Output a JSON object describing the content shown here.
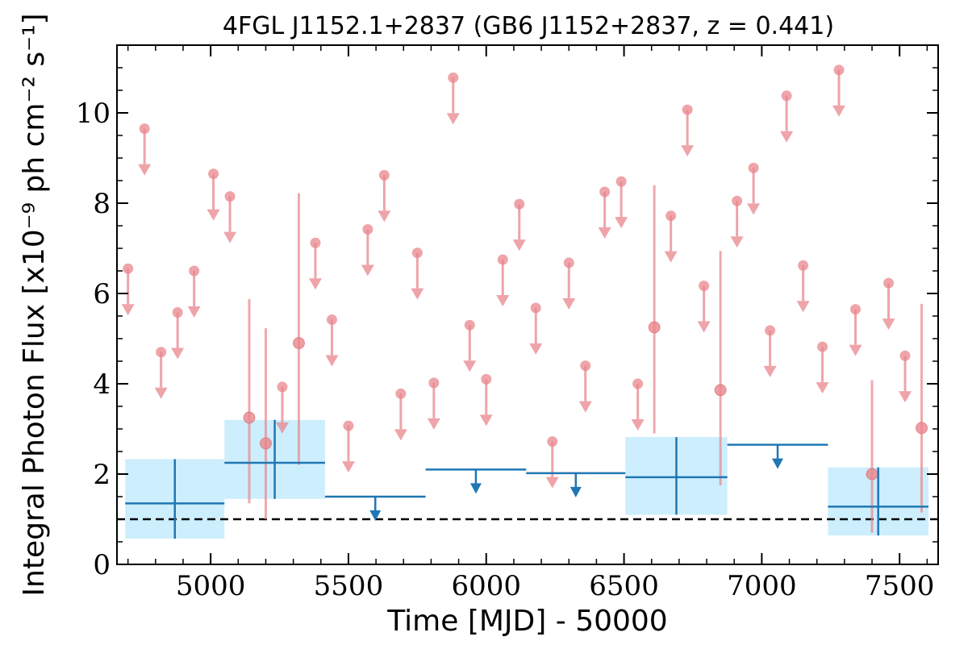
{
  "chart_data": {
    "type": "scatter",
    "title": "4FGL J1152.1+2837 (GB6 J1152+2837, z = 0.441)",
    "xlabel": "Time [MJD] - 50000",
    "ylabel": "Integral Photon Flux [x10⁻⁹ ph cm⁻² s⁻¹]",
    "xlim": [
      4660,
      7640
    ],
    "ylim": [
      0,
      11.5
    ],
    "xticks": [
      5000,
      5500,
      6000,
      6500,
      7000,
      7500
    ],
    "yticks": [
      0,
      2,
      4,
      6,
      8,
      10
    ],
    "reference_line": 1.0,
    "colors": {
      "fine_points": "#e8868c",
      "coarse": "#1f77b4",
      "coarse_box": "#cdeefc",
      "reference": "#000000"
    },
    "fine_upper_limits": [
      {
        "x": 4700,
        "y": 6.55
      },
      {
        "x": 4760,
        "y": 9.65
      },
      {
        "x": 4820,
        "y": 4.7
      },
      {
        "x": 4880,
        "y": 5.58
      },
      {
        "x": 4940,
        "y": 6.5
      },
      {
        "x": 5010,
        "y": 8.65
      },
      {
        "x": 5070,
        "y": 8.15
      },
      {
        "x": 5260,
        "y": 3.93
      },
      {
        "x": 5380,
        "y": 7.12
      },
      {
        "x": 5440,
        "y": 5.42
      },
      {
        "x": 5500,
        "y": 3.07
      },
      {
        "x": 5570,
        "y": 7.42
      },
      {
        "x": 5630,
        "y": 8.62
      },
      {
        "x": 5690,
        "y": 3.78
      },
      {
        "x": 5750,
        "y": 6.9
      },
      {
        "x": 5810,
        "y": 4.02
      },
      {
        "x": 5880,
        "y": 10.78
      },
      {
        "x": 5940,
        "y": 5.3
      },
      {
        "x": 6000,
        "y": 4.1
      },
      {
        "x": 6060,
        "y": 6.75
      },
      {
        "x": 6120,
        "y": 7.98
      },
      {
        "x": 6180,
        "y": 5.68
      },
      {
        "x": 6240,
        "y": 2.72
      },
      {
        "x": 6300,
        "y": 6.68
      },
      {
        "x": 6360,
        "y": 4.4
      },
      {
        "x": 6430,
        "y": 8.25
      },
      {
        "x": 6490,
        "y": 8.48
      },
      {
        "x": 6550,
        "y": 4.0
      },
      {
        "x": 6670,
        "y": 7.72
      },
      {
        "x": 6730,
        "y": 10.07
      },
      {
        "x": 6790,
        "y": 6.17
      },
      {
        "x": 6910,
        "y": 8.05
      },
      {
        "x": 6970,
        "y": 8.78
      },
      {
        "x": 7030,
        "y": 5.18
      },
      {
        "x": 7090,
        "y": 10.38
      },
      {
        "x": 7150,
        "y": 6.62
      },
      {
        "x": 7220,
        "y": 4.82
      },
      {
        "x": 7280,
        "y": 10.95
      },
      {
        "x": 7340,
        "y": 5.65
      },
      {
        "x": 7460,
        "y": 6.23
      },
      {
        "x": 7520,
        "y": 4.62
      }
    ],
    "fine_detections": [
      {
        "x": 5140,
        "y": 3.25,
        "ylo": 1.35,
        "yhi": 5.88
      },
      {
        "x": 5200,
        "y": 2.68,
        "ylo": 1.0,
        "yhi": 5.23
      },
      {
        "x": 5320,
        "y": 4.9,
        "ylo": 2.2,
        "yhi": 8.22
      },
      {
        "x": 6610,
        "y": 5.25,
        "ylo": 2.9,
        "yhi": 8.4
      },
      {
        "x": 6850,
        "y": 3.86,
        "ylo": 1.75,
        "yhi": 6.94
      },
      {
        "x": 7400,
        "y": 2.0,
        "ylo": 0.7,
        "yhi": 4.08
      },
      {
        "x": 7580,
        "y": 3.02,
        "ylo": 1.15,
        "yhi": 5.77
      }
    ],
    "coarse_detections": [
      {
        "x0": 4690,
        "x1": 5050,
        "y": 1.35,
        "ylo": 0.57,
        "yhi": 2.33
      },
      {
        "x0": 5050,
        "x1": 5415,
        "y": 2.25,
        "ylo": 1.45,
        "yhi": 3.2
      },
      {
        "x0": 6505,
        "x1": 6875,
        "y": 1.93,
        "ylo": 1.1,
        "yhi": 2.82
      },
      {
        "x0": 7240,
        "x1": 7605,
        "y": 1.28,
        "ylo": 0.64,
        "yhi": 2.15
      }
    ],
    "coarse_upper_limits": [
      {
        "x0": 5415,
        "x1": 5780,
        "y": 1.5
      },
      {
        "x0": 5780,
        "x1": 6145,
        "y": 2.1
      },
      {
        "x0": 6145,
        "x1": 6505,
        "y": 2.02
      },
      {
        "x0": 6875,
        "x1": 7240,
        "y": 2.65
      }
    ]
  }
}
